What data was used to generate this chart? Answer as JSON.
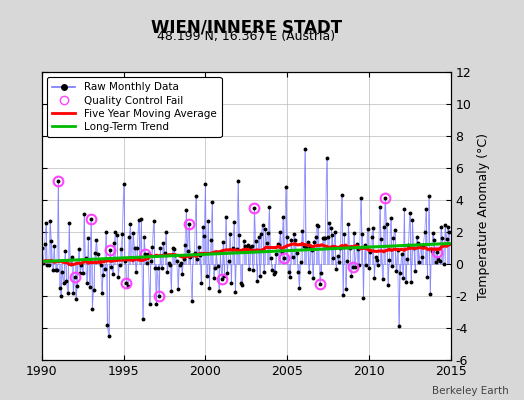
{
  "title": "WIEN/INNERE STADT",
  "subtitle": "48.199 N, 16.367 E (Austria)",
  "ylabel": "Temperature Anomaly (°C)",
  "watermark": "Berkeley Earth",
  "xlim": [
    1990,
    2015
  ],
  "ylim": [
    -6,
    12
  ],
  "yticks": [
    -6,
    -4,
    -2,
    0,
    2,
    4,
    6,
    8,
    10,
    12
  ],
  "xticks": [
    1990,
    1995,
    2000,
    2005,
    2010,
    2015
  ],
  "background_color": "#d8d8d8",
  "plot_bg_color": "#ffffff",
  "raw_line_color": "#7777ff",
  "raw_dot_color": "#000000",
  "qc_color": "#ff44ff",
  "moving_avg_color": "#ff0000",
  "trend_color": "#00bb00",
  "seed": 42,
  "n_years": 25,
  "trend_intercept": 0.28,
  "trend_slope": 0.032,
  "noise_std": 1.5,
  "qc_fail_indices": [
    12,
    24,
    36,
    50,
    62,
    76,
    86,
    108,
    132,
    156,
    178,
    204,
    228,
    252,
    290,
    315,
    330
  ]
}
